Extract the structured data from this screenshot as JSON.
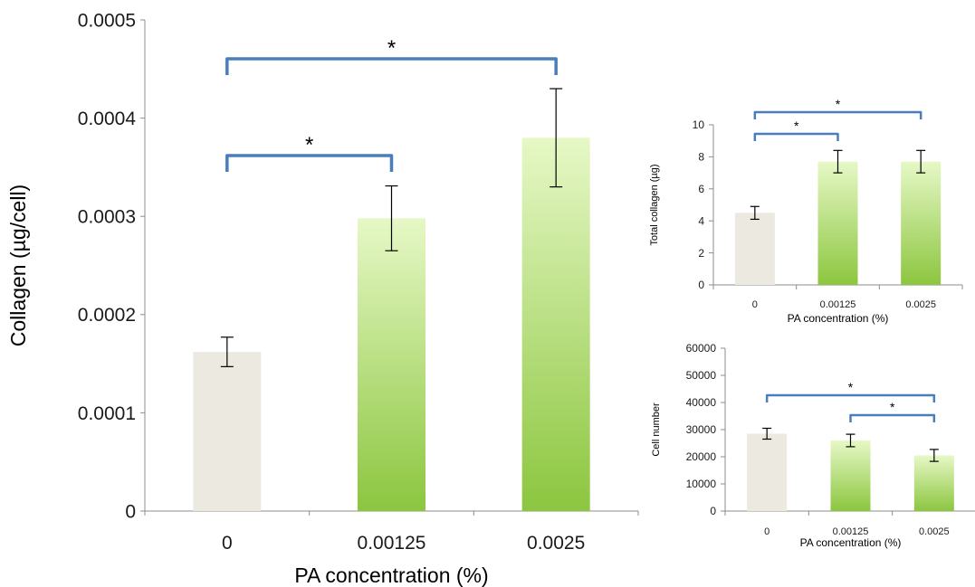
{
  "chart_data": [
    {
      "type": "bar",
      "xlabel": "PA concentration (%)",
      "ylabel": "Collagen (µg/cell)",
      "categories": [
        "0",
        "0.00125",
        "0.0025"
      ],
      "values": [
        0.000162,
        0.000298,
        0.00038
      ],
      "error": [
        1.5e-05,
        3.3e-05,
        5e-05
      ],
      "ylim": [
        0,
        0.0005
      ],
      "yticks": [
        "0",
        "0.0001",
        "0.0002",
        "0.0003",
        "0.0004",
        "0.0005"
      ],
      "significance": [
        {
          "from": 0,
          "to": 1,
          "label": "*"
        },
        {
          "from": 0,
          "to": 2,
          "label": "*"
        }
      ],
      "bar_colors": [
        "#ebe9e0",
        "#b5de73",
        "#b5de73"
      ],
      "grid": false
    },
    {
      "type": "bar",
      "xlabel": "PA concentration (%)",
      "ylabel": "Total collagen (µg)",
      "categories": [
        "0",
        "0.00125",
        "0.0025"
      ],
      "values": [
        4.5,
        7.7,
        7.7
      ],
      "error": [
        0.4,
        0.7,
        0.7
      ],
      "ylim": [
        0,
        10
      ],
      "yticks": [
        "0",
        "2",
        "4",
        "6",
        "8",
        "10"
      ],
      "significance": [
        {
          "from": 0,
          "to": 1,
          "label": "*"
        },
        {
          "from": 0,
          "to": 2,
          "label": "*"
        }
      ],
      "bar_colors": [
        "#ebe9e0",
        "#b5de73",
        "#b5de73"
      ],
      "grid": false
    },
    {
      "type": "bar",
      "xlabel": "PA concentration (%)",
      "ylabel": "Cell number",
      "categories": [
        "0",
        "0.00125",
        "0.0025"
      ],
      "values": [
        28500,
        26000,
        20500
      ],
      "error": [
        2000,
        2300,
        2200
      ],
      "ylim": [
        0,
        60000
      ],
      "yticks": [
        "0",
        "10000",
        "20000",
        "30000",
        "40000",
        "50000",
        "60000"
      ],
      "significance": [
        {
          "from": 0,
          "to": 2,
          "label": "*"
        },
        {
          "from": 1,
          "to": 2,
          "label": "*"
        }
      ],
      "bar_colors": [
        "#ebe9e0",
        "#b5de73",
        "#b5de73"
      ],
      "grid": false
    }
  ]
}
